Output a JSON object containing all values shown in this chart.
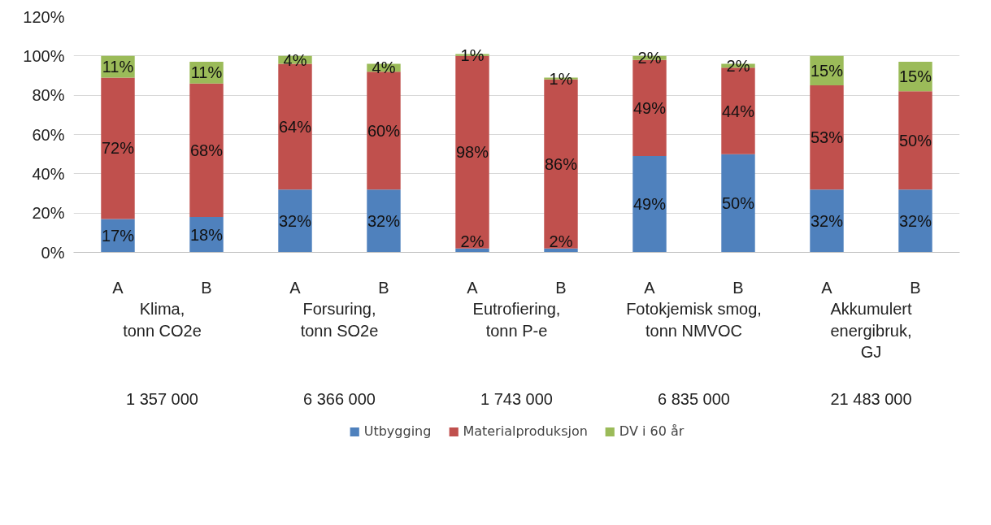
{
  "chart_data": {
    "type": "bar",
    "stacked": true,
    "categories": [
      "A",
      "B",
      "A",
      "B",
      "A",
      "B",
      "A",
      "B",
      "A",
      "B"
    ],
    "series": [
      {
        "name": "Utbygging",
        "color": "#4f81bd",
        "values": [
          17,
          18,
          32,
          32,
          2,
          2,
          49,
          50,
          32,
          32
        ],
        "value_labels": [
          "17%",
          "18%",
          "32%",
          "32%",
          "2%",
          "2%",
          "49%",
          "50%",
          "32%",
          "32%"
        ]
      },
      {
        "name": "Materialproduksjon",
        "color": "#c0504d",
        "values": [
          72,
          68,
          64,
          60,
          98,
          86,
          49,
          44,
          53,
          50
        ],
        "value_labels": [
          "72%",
          "68%",
          "64%",
          "60%",
          "98%",
          "86%",
          "49%",
          "44%",
          "53%",
          "50%"
        ]
      },
      {
        "name": "DV i 60 år",
        "color": "#9bbb59",
        "values": [
          11,
          11,
          4,
          4,
          1,
          1,
          2,
          2,
          15,
          15
        ],
        "value_labels": [
          "11%",
          "11%",
          "4%",
          "4%",
          "1%",
          "1%",
          "2%",
          "2%",
          "15%",
          "15%"
        ]
      }
    ],
    "ylim": [
      0,
      120
    ],
    "yticks": [
      {
        "value": 0,
        "label": "0%"
      },
      {
        "value": 20,
        "label": "20%"
      },
      {
        "value": 40,
        "label": "40%"
      },
      {
        "value": 60,
        "label": "60%"
      },
      {
        "value": 80,
        "label": "80%"
      },
      {
        "value": 100,
        "label": "100%"
      },
      {
        "value": 120,
        "label": "120%"
      }
    ],
    "grid": "y",
    "legend": "bottom",
    "annotations": [
      "Klima,\ntonn CO2e",
      "Forsuring,\ntonn SO2e",
      "Eutrofiering,\ntonn P-e",
      "Fotokjemisk smog,\ntonn NMVOC",
      "Akkumulert\nenergibruk,\nGJ",
      "1 357 000",
      "6 366 000",
      "1 743 000",
      "6 835 000",
      "21 483 000"
    ]
  }
}
